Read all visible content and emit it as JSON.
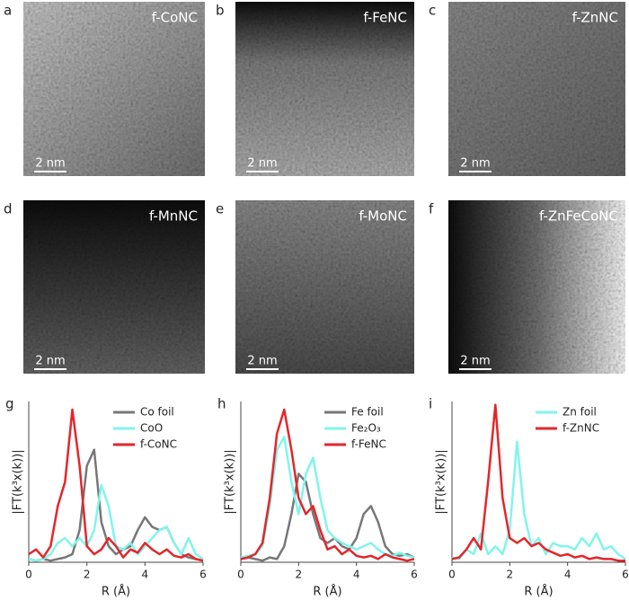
{
  "panels": [
    {
      "letter": "a",
      "label": "f-CoNC",
      "scale_bar": "2 nm"
    },
    {
      "letter": "b",
      "label": "f-FeNC",
      "scale_bar": "2 nm"
    },
    {
      "letter": "c",
      "label": "f-ZnNC",
      "scale_bar": "2 nm"
    },
    {
      "letter": "d",
      "label": "f-MnNC",
      "scale_bar": "2 nm"
    },
    {
      "letter": "e",
      "label": "f-MoNC",
      "scale_bar": "2 nm"
    },
    {
      "letter": "f",
      "label": "f-ZnFeCoNC",
      "scale_bar": "2 nm"
    }
  ],
  "chart_data": [
    {
      "type": "line",
      "panel": "g",
      "x_label": "R (Å)",
      "y_label": "|FT(k³x(k))|",
      "x": [
        0,
        0.25,
        0.5,
        0.75,
        1,
        1.25,
        1.5,
        1.75,
        2,
        2.25,
        2.5,
        2.75,
        3,
        3.25,
        3.5,
        3.75,
        4,
        4.25,
        4.5,
        4.75,
        5,
        5.25,
        5.5,
        5.75,
        6
      ],
      "xlim": [
        0,
        6
      ],
      "xticks": [
        0,
        2,
        4,
        6
      ],
      "ylim": [
        0,
        1
      ],
      "series": [
        {
          "name": "Co foil",
          "color": "#777777",
          "values": [
            0.02,
            0.01,
            0.02,
            0.01,
            0.02,
            0.03,
            0.05,
            0.2,
            0.6,
            0.7,
            0.25,
            0.1,
            0.05,
            0.08,
            0.1,
            0.2,
            0.28,
            0.22,
            0.2,
            0.22,
            0.12,
            0.05,
            0.03,
            0.02,
            0.01
          ]
        },
        {
          "name": "CoO",
          "color": "#7ff5ec",
          "values": [
            0.02,
            0.01,
            0.02,
            0.05,
            0.12,
            0.15,
            0.1,
            0.15,
            0.1,
            0.2,
            0.48,
            0.35,
            0.1,
            0.08,
            0.12,
            0.05,
            0.1,
            0.15,
            0.2,
            0.22,
            0.12,
            0.05,
            0.15,
            0.05,
            0.02
          ]
        },
        {
          "name": "f-CoNC",
          "color": "#e3262b",
          "values": [
            0.05,
            0.08,
            0.03,
            0.1,
            0.35,
            0.5,
            0.95,
            0.6,
            0.1,
            0.05,
            0.08,
            0.15,
            0.1,
            0.03,
            0.08,
            0.06,
            0.12,
            0.08,
            0.05,
            0.08,
            0.04,
            0.03,
            0.05,
            0.02,
            0.01
          ]
        }
      ]
    },
    {
      "type": "line",
      "panel": "h",
      "x_label": "R (Å)",
      "y_label": "|FT(k³x(k))|",
      "x": [
        0,
        0.25,
        0.5,
        0.75,
        1,
        1.25,
        1.5,
        1.75,
        2,
        2.25,
        2.5,
        2.75,
        3,
        3.25,
        3.5,
        3.75,
        4,
        4.25,
        4.5,
        4.75,
        5,
        5.25,
        5.5,
        5.75,
        6
      ],
      "xlim": [
        0,
        6
      ],
      "xticks": [
        0,
        2,
        4,
        6
      ],
      "ylim": [
        0,
        1
      ],
      "series": [
        {
          "name": "Fe foil",
          "color": "#777777",
          "values": [
            0.02,
            0.03,
            0.02,
            0.01,
            0.03,
            0.02,
            0.1,
            0.3,
            0.55,
            0.5,
            0.3,
            0.15,
            0.12,
            0.15,
            0.1,
            0.08,
            0.15,
            0.3,
            0.35,
            0.25,
            0.1,
            0.05,
            0.04,
            0.05,
            0.03
          ]
        },
        {
          "name": "Fe₂O₃",
          "color": "#7ff5ec",
          "values": [
            0.03,
            0.04,
            0.05,
            0.1,
            0.35,
            0.7,
            0.78,
            0.5,
            0.3,
            0.55,
            0.65,
            0.4,
            0.2,
            0.15,
            0.12,
            0.1,
            0.08,
            0.1,
            0.12,
            0.08,
            0.05,
            0.04,
            0.06,
            0.04,
            0.03
          ]
        },
        {
          "name": "f-FeNC",
          "color": "#e3262b",
          "values": [
            0.02,
            0.03,
            0.05,
            0.12,
            0.4,
            0.8,
            0.95,
            0.7,
            0.4,
            0.3,
            0.35,
            0.2,
            0.08,
            0.1,
            0.05,
            0.08,
            0.04,
            0.03,
            0.04,
            0.02,
            0.05,
            0.03,
            0.02,
            0.01,
            0.02
          ]
        }
      ]
    },
    {
      "type": "line",
      "panel": "i",
      "x_label": "R (Å)",
      "y_label": "|FT(k³x(k))|",
      "x": [
        0,
        0.25,
        0.5,
        0.75,
        1,
        1.25,
        1.5,
        1.75,
        2,
        2.25,
        2.5,
        2.75,
        3,
        3.25,
        3.5,
        3.75,
        4,
        4.25,
        4.5,
        4.75,
        5,
        5.25,
        5.5,
        5.75,
        6
      ],
      "xlim": [
        0,
        6
      ],
      "xticks": [
        0,
        2,
        4,
        6
      ],
      "ylim": [
        0,
        1
      ],
      "series": [
        {
          "name": "Zn foil",
          "color": "#7ff5ec",
          "values": [
            0.03,
            0.02,
            0.08,
            0.05,
            0.18,
            0.05,
            0.1,
            0.05,
            0.2,
            0.75,
            0.3,
            0.1,
            0.15,
            0.05,
            0.12,
            0.1,
            0.1,
            0.08,
            0.15,
            0.1,
            0.18,
            0.08,
            0.1,
            0.05,
            0.02
          ]
        },
        {
          "name": "f-ZnNC",
          "color": "#e3262b",
          "values": [
            0.02,
            0.03,
            0.08,
            0.15,
            0.08,
            0.5,
            0.98,
            0.4,
            0.15,
            0.12,
            0.15,
            0.1,
            0.12,
            0.08,
            0.06,
            0.04,
            0.05,
            0.03,
            0.04,
            0.02,
            0.03,
            0.02,
            0.02,
            0.01,
            0.01
          ]
        }
      ]
    }
  ]
}
